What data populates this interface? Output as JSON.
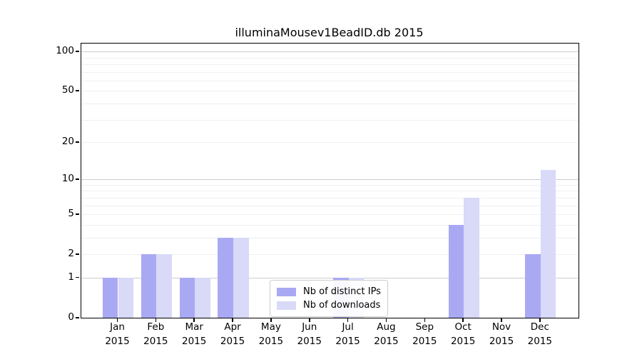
{
  "chart_data": {
    "type": "bar",
    "title": "illuminaMousev1BeadID.db 2015",
    "categories": [
      "Jan",
      "Feb",
      "Mar",
      "Apr",
      "May",
      "Jun",
      "Jul",
      "Aug",
      "Sep",
      "Oct",
      "Nov",
      "Dec"
    ],
    "year_label": "2015",
    "series": [
      {
        "name": "Nb of distinct IPs",
        "color": "#a9a9f3",
        "values": [
          1,
          2,
          1,
          3,
          0,
          0,
          1,
          0,
          0,
          4,
          0,
          2
        ]
      },
      {
        "name": "Nb of downloads",
        "color": "#d9d9f8",
        "values": [
          1,
          2,
          1,
          3,
          0,
          0,
          1,
          0,
          0,
          7,
          0,
          12
        ]
      }
    ],
    "yscale": "log1p",
    "ylim": [
      0,
      114
    ],
    "yticks": [
      {
        "value": 0,
        "label": "0"
      },
      {
        "value": 1,
        "label": "1"
      },
      {
        "value": 2,
        "label": "2"
      },
      {
        "value": 5,
        "label": "5"
      },
      {
        "value": 10,
        "label": "10"
      },
      {
        "value": 20,
        "label": "20"
      },
      {
        "value": 50,
        "label": "50"
      },
      {
        "value": 100,
        "label": "100"
      }
    ],
    "grid": true,
    "grid_major_values": [
      1,
      10,
      100
    ],
    "grid_minor_values": [
      2,
      3,
      4,
      5,
      6,
      7,
      8,
      9,
      20,
      30,
      40,
      50,
      60,
      70,
      80,
      90
    ],
    "legend_position": "lower-center-inside",
    "colors": {
      "grid_major": "#cccccc",
      "grid_minor": "#efefef",
      "axis": "#000000",
      "background": "#ffffff"
    }
  }
}
